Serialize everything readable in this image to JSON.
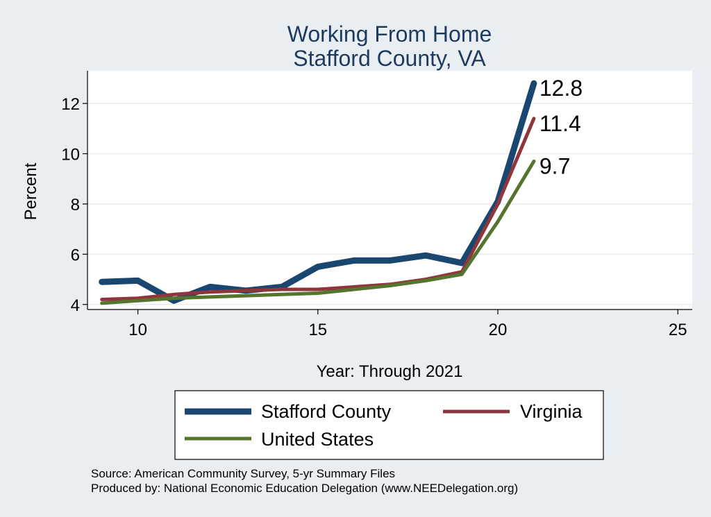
{
  "chart_data": {
    "type": "line",
    "title": [
      "Working From Home",
      "Stafford County, VA"
    ],
    "xlabel": "Year: Through 2021",
    "ylabel": "Percent",
    "xlim": [
      8.6,
      25.4
    ],
    "ylim": [
      3.8,
      13.3
    ],
    "xticks": [
      10,
      15,
      20,
      25
    ],
    "yticks": [
      4,
      6,
      8,
      10,
      12
    ],
    "grid": true,
    "legend_position": "bottom",
    "x": [
      9,
      10,
      11,
      12,
      13,
      14,
      15,
      16,
      17,
      18,
      19,
      20,
      21
    ],
    "series": [
      {
        "name": "Stafford County",
        "color": "#1a476f",
        "width": 9,
        "values": [
          4.9,
          4.95,
          4.15,
          4.7,
          4.55,
          4.7,
          5.5,
          5.75,
          5.75,
          5.95,
          5.65,
          8.1,
          12.8
        ],
        "end_label": "12.8"
      },
      {
        "name": "Virginia",
        "color": "#90353b",
        "width": 5,
        "values": [
          4.2,
          4.25,
          4.4,
          4.5,
          4.55,
          4.6,
          4.6,
          4.7,
          4.8,
          5.0,
          5.3,
          8.0,
          11.4
        ],
        "end_label": "11.4"
      },
      {
        "name": "United States",
        "color": "#55752f",
        "width": 5,
        "values": [
          4.05,
          4.15,
          4.25,
          4.3,
          4.35,
          4.4,
          4.45,
          4.6,
          4.75,
          4.95,
          5.2,
          7.3,
          9.7
        ],
        "end_label": "9.7"
      }
    ]
  },
  "notes": [
    "Source: American Community Survey, 5-yr Summary Files",
    "Produced by: National Economic Education Delegation (www.NEEDelegation.org)"
  ]
}
